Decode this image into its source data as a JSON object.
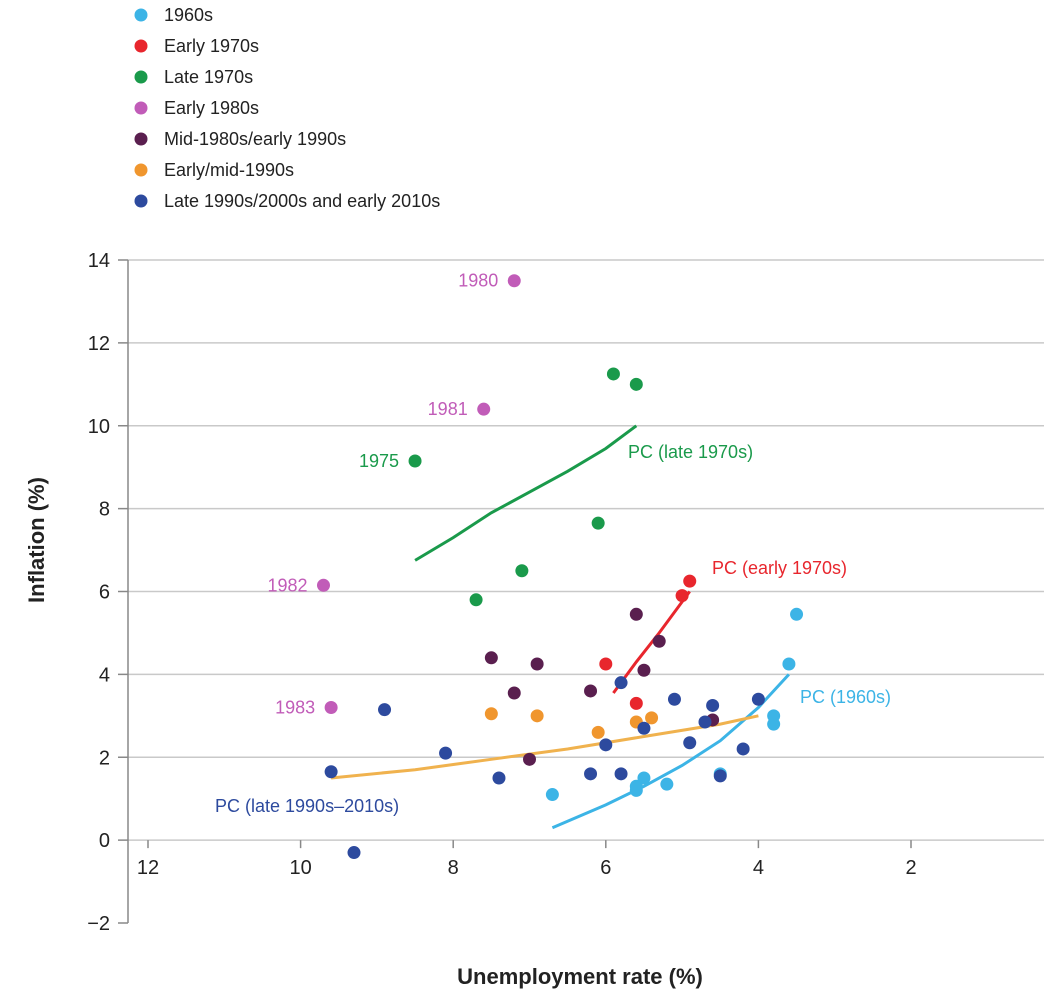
{
  "chart_data": {
    "type": "scatter",
    "xlabel": "Unemployment rate (%)",
    "ylabel": "Inflation (%)",
    "x_reversed": true,
    "xlim": [
      14,
      0
    ],
    "ylim": [
      -2,
      14
    ],
    "x_ticks": [
      12,
      10,
      8,
      6,
      4,
      2
    ],
    "y_ticks": [
      14,
      12,
      10,
      8,
      6,
      4,
      2,
      0,
      -2
    ],
    "grid": "horizontal",
    "legend_position": "top-left",
    "series": [
      {
        "name": "1960s",
        "color": "#3cb4e6",
        "points": [
          {
            "x": 3.5,
            "y": 5.45
          },
          {
            "x": 3.6,
            "y": 4.25
          },
          {
            "x": 3.8,
            "y": 3.0
          },
          {
            "x": 3.8,
            "y": 2.8
          },
          {
            "x": 4.5,
            "y": 1.6
          },
          {
            "x": 5.2,
            "y": 1.35
          },
          {
            "x": 5.5,
            "y": 1.5
          },
          {
            "x": 5.6,
            "y": 1.3
          },
          {
            "x": 5.6,
            "y": 1.2
          },
          {
            "x": 6.7,
            "y": 1.1
          }
        ]
      },
      {
        "name": "Early 1970s",
        "color": "#e8262d",
        "points": [
          {
            "x": 4.9,
            "y": 6.25
          },
          {
            "x": 5.0,
            "y": 5.9
          },
          {
            "x": 5.6,
            "y": 3.3
          },
          {
            "x": 6.0,
            "y": 4.25
          }
        ]
      },
      {
        "name": "Late 1970s",
        "color": "#1a9a4b",
        "points": [
          {
            "x": 5.9,
            "y": 11.25
          },
          {
            "x": 5.6,
            "y": 11.0
          },
          {
            "x": 8.5,
            "y": 9.15,
            "label": "1975"
          },
          {
            "x": 6.1,
            "y": 7.65
          },
          {
            "x": 7.1,
            "y": 6.5
          },
          {
            "x": 7.7,
            "y": 5.8
          }
        ]
      },
      {
        "name": "Early 1980s",
        "color": "#c15cb8",
        "points": [
          {
            "x": 7.2,
            "y": 13.5,
            "label": "1980"
          },
          {
            "x": 7.6,
            "y": 10.4,
            "label": "1981"
          },
          {
            "x": 9.7,
            "y": 6.15,
            "label": "1982"
          },
          {
            "x": 9.6,
            "y": 3.2,
            "label": "1983"
          }
        ]
      },
      {
        "name": "Mid-1980s/early 1990s",
        "color": "#5a1f4f",
        "points": [
          {
            "x": 5.6,
            "y": 5.45
          },
          {
            "x": 5.3,
            "y": 4.8
          },
          {
            "x": 7.5,
            "y": 4.4
          },
          {
            "x": 6.9,
            "y": 4.25
          },
          {
            "x": 5.5,
            "y": 4.1
          },
          {
            "x": 7.2,
            "y": 3.55
          },
          {
            "x": 6.2,
            "y": 3.6
          },
          {
            "x": 7.0,
            "y": 1.95
          },
          {
            "x": 4.6,
            "y": 2.9
          }
        ]
      },
      {
        "name": "Early/mid-1990s",
        "color": "#f0962e",
        "points": [
          {
            "x": 7.5,
            "y": 3.05
          },
          {
            "x": 6.9,
            "y": 3.0
          },
          {
            "x": 5.4,
            "y": 2.95
          },
          {
            "x": 5.6,
            "y": 2.85
          },
          {
            "x": 6.1,
            "y": 2.6
          }
        ]
      },
      {
        "name": "Late 1990s/2000s and early 2010s",
        "color": "#2d4a9e",
        "points": [
          {
            "x": 8.9,
            "y": 3.15
          },
          {
            "x": 5.8,
            "y": 3.8
          },
          {
            "x": 5.1,
            "y": 3.4
          },
          {
            "x": 4.0,
            "y": 3.4
          },
          {
            "x": 4.6,
            "y": 3.25
          },
          {
            "x": 4.7,
            "y": 2.85
          },
          {
            "x": 5.5,
            "y": 2.7
          },
          {
            "x": 4.9,
            "y": 2.35
          },
          {
            "x": 6.0,
            "y": 2.3
          },
          {
            "x": 4.2,
            "y": 2.2
          },
          {
            "x": 8.1,
            "y": 2.1
          },
          {
            "x": 9.6,
            "y": 1.65
          },
          {
            "x": 6.2,
            "y": 1.6
          },
          {
            "x": 5.8,
            "y": 1.6
          },
          {
            "x": 4.5,
            "y": 1.55
          },
          {
            "x": 7.4,
            "y": 1.5
          },
          {
            "x": 9.3,
            "y": -0.3
          }
        ]
      }
    ],
    "curves": [
      {
        "label": "PC (late 1970s)",
        "color": "#1a9a4b",
        "x": [
          8.5,
          8.0,
          7.5,
          7.0,
          6.5,
          6.0,
          5.6
        ],
        "y": [
          6.75,
          7.3,
          7.9,
          8.4,
          8.9,
          9.45,
          10.0
        ]
      },
      {
        "label": "PC (early 1970s)",
        "color": "#e8262d",
        "x": [
          5.9,
          5.6,
          5.3,
          4.9
        ],
        "y": [
          3.55,
          4.3,
          5.0,
          6.0
        ]
      },
      {
        "label": "PC (1960s)",
        "color": "#3cb4e6",
        "x": [
          6.7,
          6.0,
          5.5,
          5.0,
          4.5,
          4.0,
          3.6
        ],
        "y": [
          0.3,
          0.85,
          1.3,
          1.8,
          2.4,
          3.2,
          4.0
        ]
      },
      {
        "label": "PC (late 1990s–2010s)",
        "color": "#f0b24e",
        "label_color": "#2d4a9e",
        "x": [
          9.6,
          8.5,
          7.5,
          6.5,
          5.5,
          4.5,
          4.0
        ],
        "y": [
          1.5,
          1.7,
          1.95,
          2.2,
          2.5,
          2.8,
          3.0
        ]
      }
    ]
  }
}
